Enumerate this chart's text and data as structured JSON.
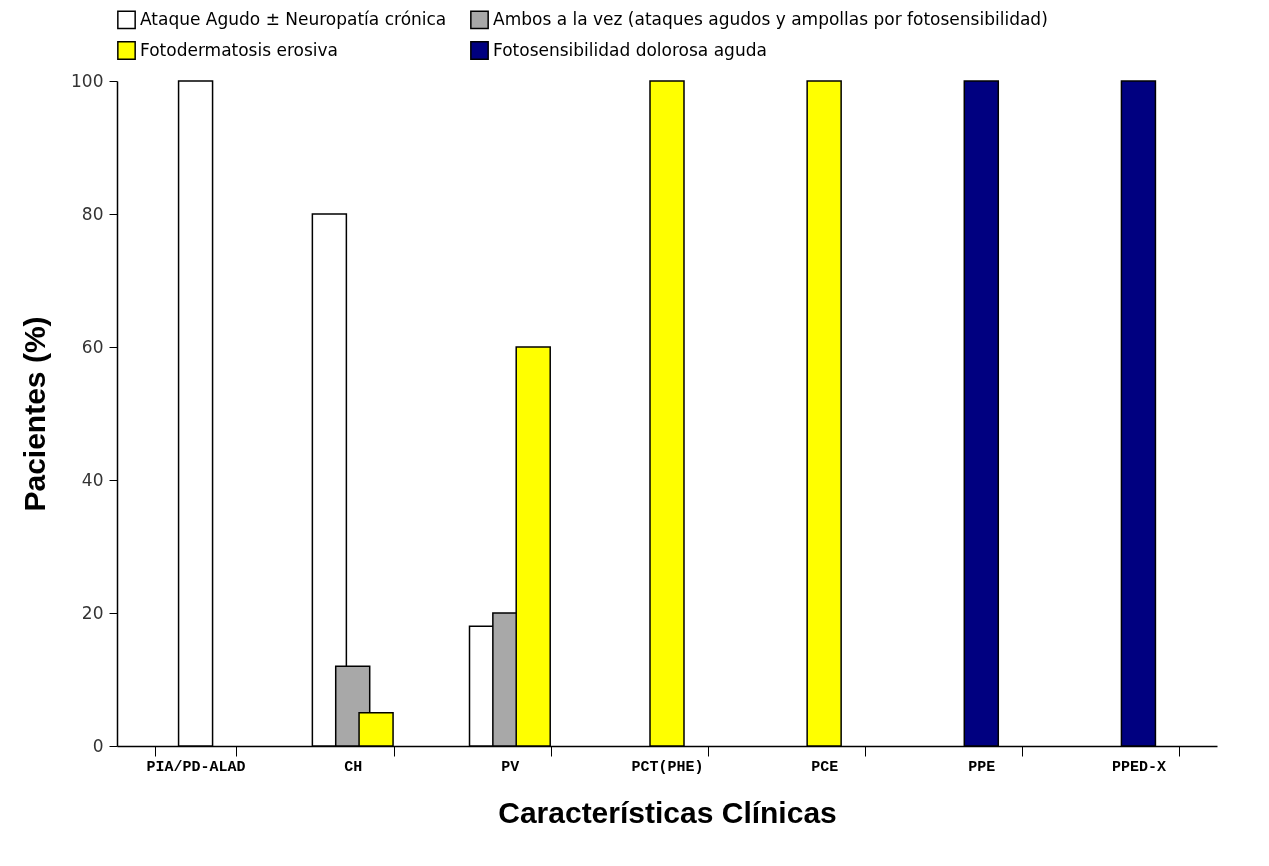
{
  "chart_data": {
    "type": "bar",
    "xlabel": "Características Clínicas",
    "ylabel": "Pacientes (%)",
    "categories": [
      "PIA/PD-ALAD",
      "CH",
      "PV",
      "PCT(PHE)",
      "PCE",
      "PPE",
      "PPED-X"
    ],
    "series": [
      {
        "name": "Ataque Agudo ± Neuropatía crónica",
        "color": "#ffffff",
        "values": [
          100,
          80,
          18,
          null,
          null,
          null,
          null
        ]
      },
      {
        "name": "Ambos a la vez (ataques agudos y ampollas por fotosensibilidad)",
        "color": "#a8a8a8",
        "values": [
          null,
          12,
          20,
          null,
          null,
          null,
          null
        ]
      },
      {
        "name": "Fotodermatosis erosiva",
        "color": "#ffff00",
        "values": [
          null,
          5,
          60,
          100,
          100,
          null,
          null
        ]
      },
      {
        "name": "Fotosensibilidad dolorosa aguda",
        "color": "#000080",
        "values": [
          null,
          null,
          null,
          null,
          null,
          100,
          100
        ]
      }
    ],
    "ylim": [
      0,
      100
    ],
    "yticks": [
      0,
      20,
      40,
      60,
      80,
      100
    ],
    "grid": false,
    "legend": "top"
  }
}
